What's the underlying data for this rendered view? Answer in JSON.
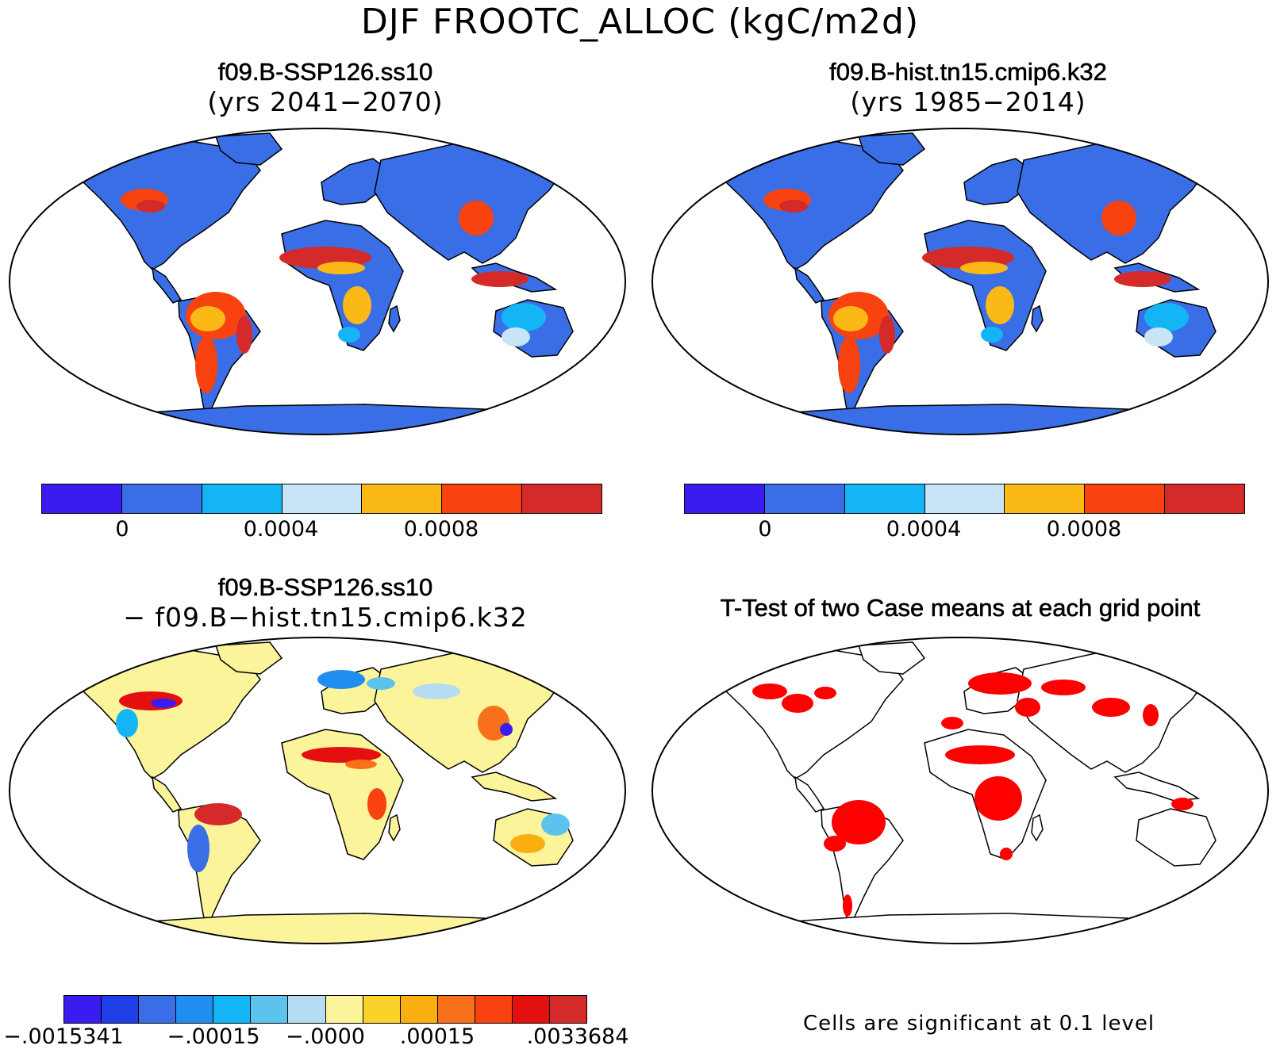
{
  "title": "DJF FROOTC_ALLOC (kgC/m2d)",
  "panels": [
    {
      "title": "f09.B-SSP126.ss10",
      "subtitle": "(yrs 2041−2070)"
    },
    {
      "title": "f09.B-hist.tn15.cmip6.k32",
      "subtitle": "(yrs 1985−2014)"
    },
    {
      "title": "f09.B-SSP126.ss10",
      "subtitle": "− f09.B−hist.tn15.cmip6.k32"
    },
    {
      "title": "T-Test of two Case means at each grid point",
      "subtitle": ""
    }
  ],
  "colorbar_main": {
    "colors": [
      "#3b1cf0",
      "#3a6ee6",
      "#13b5f5",
      "#c8e4f7",
      "#fbb917",
      "#f8420f",
      "#d42a2a"
    ],
    "labels": [
      "0",
      "0.0004",
      "0.0008"
    ]
  },
  "colorbar_diff": {
    "colors": [
      "#3b1cf0",
      "#1e3ee8",
      "#3a6ee6",
      "#1f8ef0",
      "#13b5f5",
      "#5cc2ee",
      "#b5dcf2",
      "#fbf49a",
      "#fbd22a",
      "#fbae0f",
      "#f8701a",
      "#f8420f",
      "#e40f0f",
      "#d42a2a"
    ],
    "labels": [
      "−.0015341",
      "−.00015",
      "−.0000",
      ".00015",
      ".0033684"
    ]
  },
  "ttest_note": "Cells are significant at 0.1 level",
  "map_colors": {
    "base_panel_land": "#3a6ee6",
    "diff_panel_land": "#fbf49a",
    "ttest_sig": "#ff0000",
    "coast": "#000000"
  }
}
